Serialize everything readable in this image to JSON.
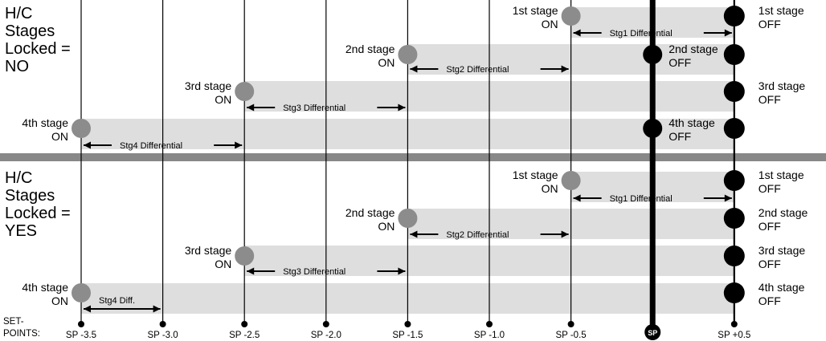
{
  "colors": {
    "band": "#dedede",
    "divider": "#888888",
    "on_marker": "#8c8c8c",
    "off_marker": "#000000",
    "line": "#000000"
  },
  "panels": [
    {
      "title_lines": [
        "H/C",
        "Stages",
        "Locked =",
        "NO"
      ],
      "stages": [
        {
          "on_label": [
            "1st stage",
            "ON"
          ],
          "off_label": [
            "1st stage",
            "OFF"
          ],
          "diff_label": "Stg1  Differential"
        },
        {
          "on_label": [
            "2nd stage",
            "ON"
          ],
          "off_label": [
            "2nd stage",
            "OFF"
          ],
          "diff_label": "Stg2  Differential"
        },
        {
          "on_label": [
            "3rd stage",
            "ON"
          ],
          "off_label": [
            "3rd stage",
            "OFF"
          ],
          "diff_label": "Stg3  Differential"
        },
        {
          "on_label": [
            "4th stage",
            "ON"
          ],
          "off_label": [
            "4th stage",
            "OFF"
          ],
          "diff_label": "Stg4  Differential"
        }
      ]
    },
    {
      "title_lines": [
        "H/C",
        "Stages",
        "Locked =",
        "YES"
      ],
      "stages": [
        {
          "on_label": [
            "1st stage",
            "ON"
          ],
          "off_label": [
            "1st stage",
            "OFF"
          ],
          "diff_label": "Stg1  Differential"
        },
        {
          "on_label": [
            "2nd stage",
            "ON"
          ],
          "off_label": [
            "2nd stage",
            "OFF"
          ],
          "diff_label": "Stg2  Differential"
        },
        {
          "on_label": [
            "3rd stage",
            "ON"
          ],
          "off_label": [
            "3rd stage",
            "OFF"
          ],
          "diff_label": "Stg3  Differential"
        },
        {
          "on_label": [
            "4th stage",
            "ON"
          ],
          "off_label": [
            "4th stage",
            "OFF"
          ],
          "diff_label": "Stg4  Diff."
        }
      ]
    }
  ],
  "setpoints_label": [
    "SET-",
    "POINTS:"
  ],
  "setpoint_ticks": [
    {
      "label": "SP -3.5",
      "value": -3.5
    },
    {
      "label": "SP -3.0",
      "value": -3.0
    },
    {
      "label": "SP -2.5",
      "value": -2.5
    },
    {
      "label": "SP -2.0",
      "value": -2.0
    },
    {
      "label": "SP -1.5",
      "value": -1.5
    },
    {
      "label": "SP -1.0",
      "value": -1.0
    },
    {
      "label": "SP -0.5",
      "value": -0.5
    },
    {
      "label": "SP",
      "value": 0
    },
    {
      "label": "SP +0.5",
      "value": 0.5
    }
  ]
}
